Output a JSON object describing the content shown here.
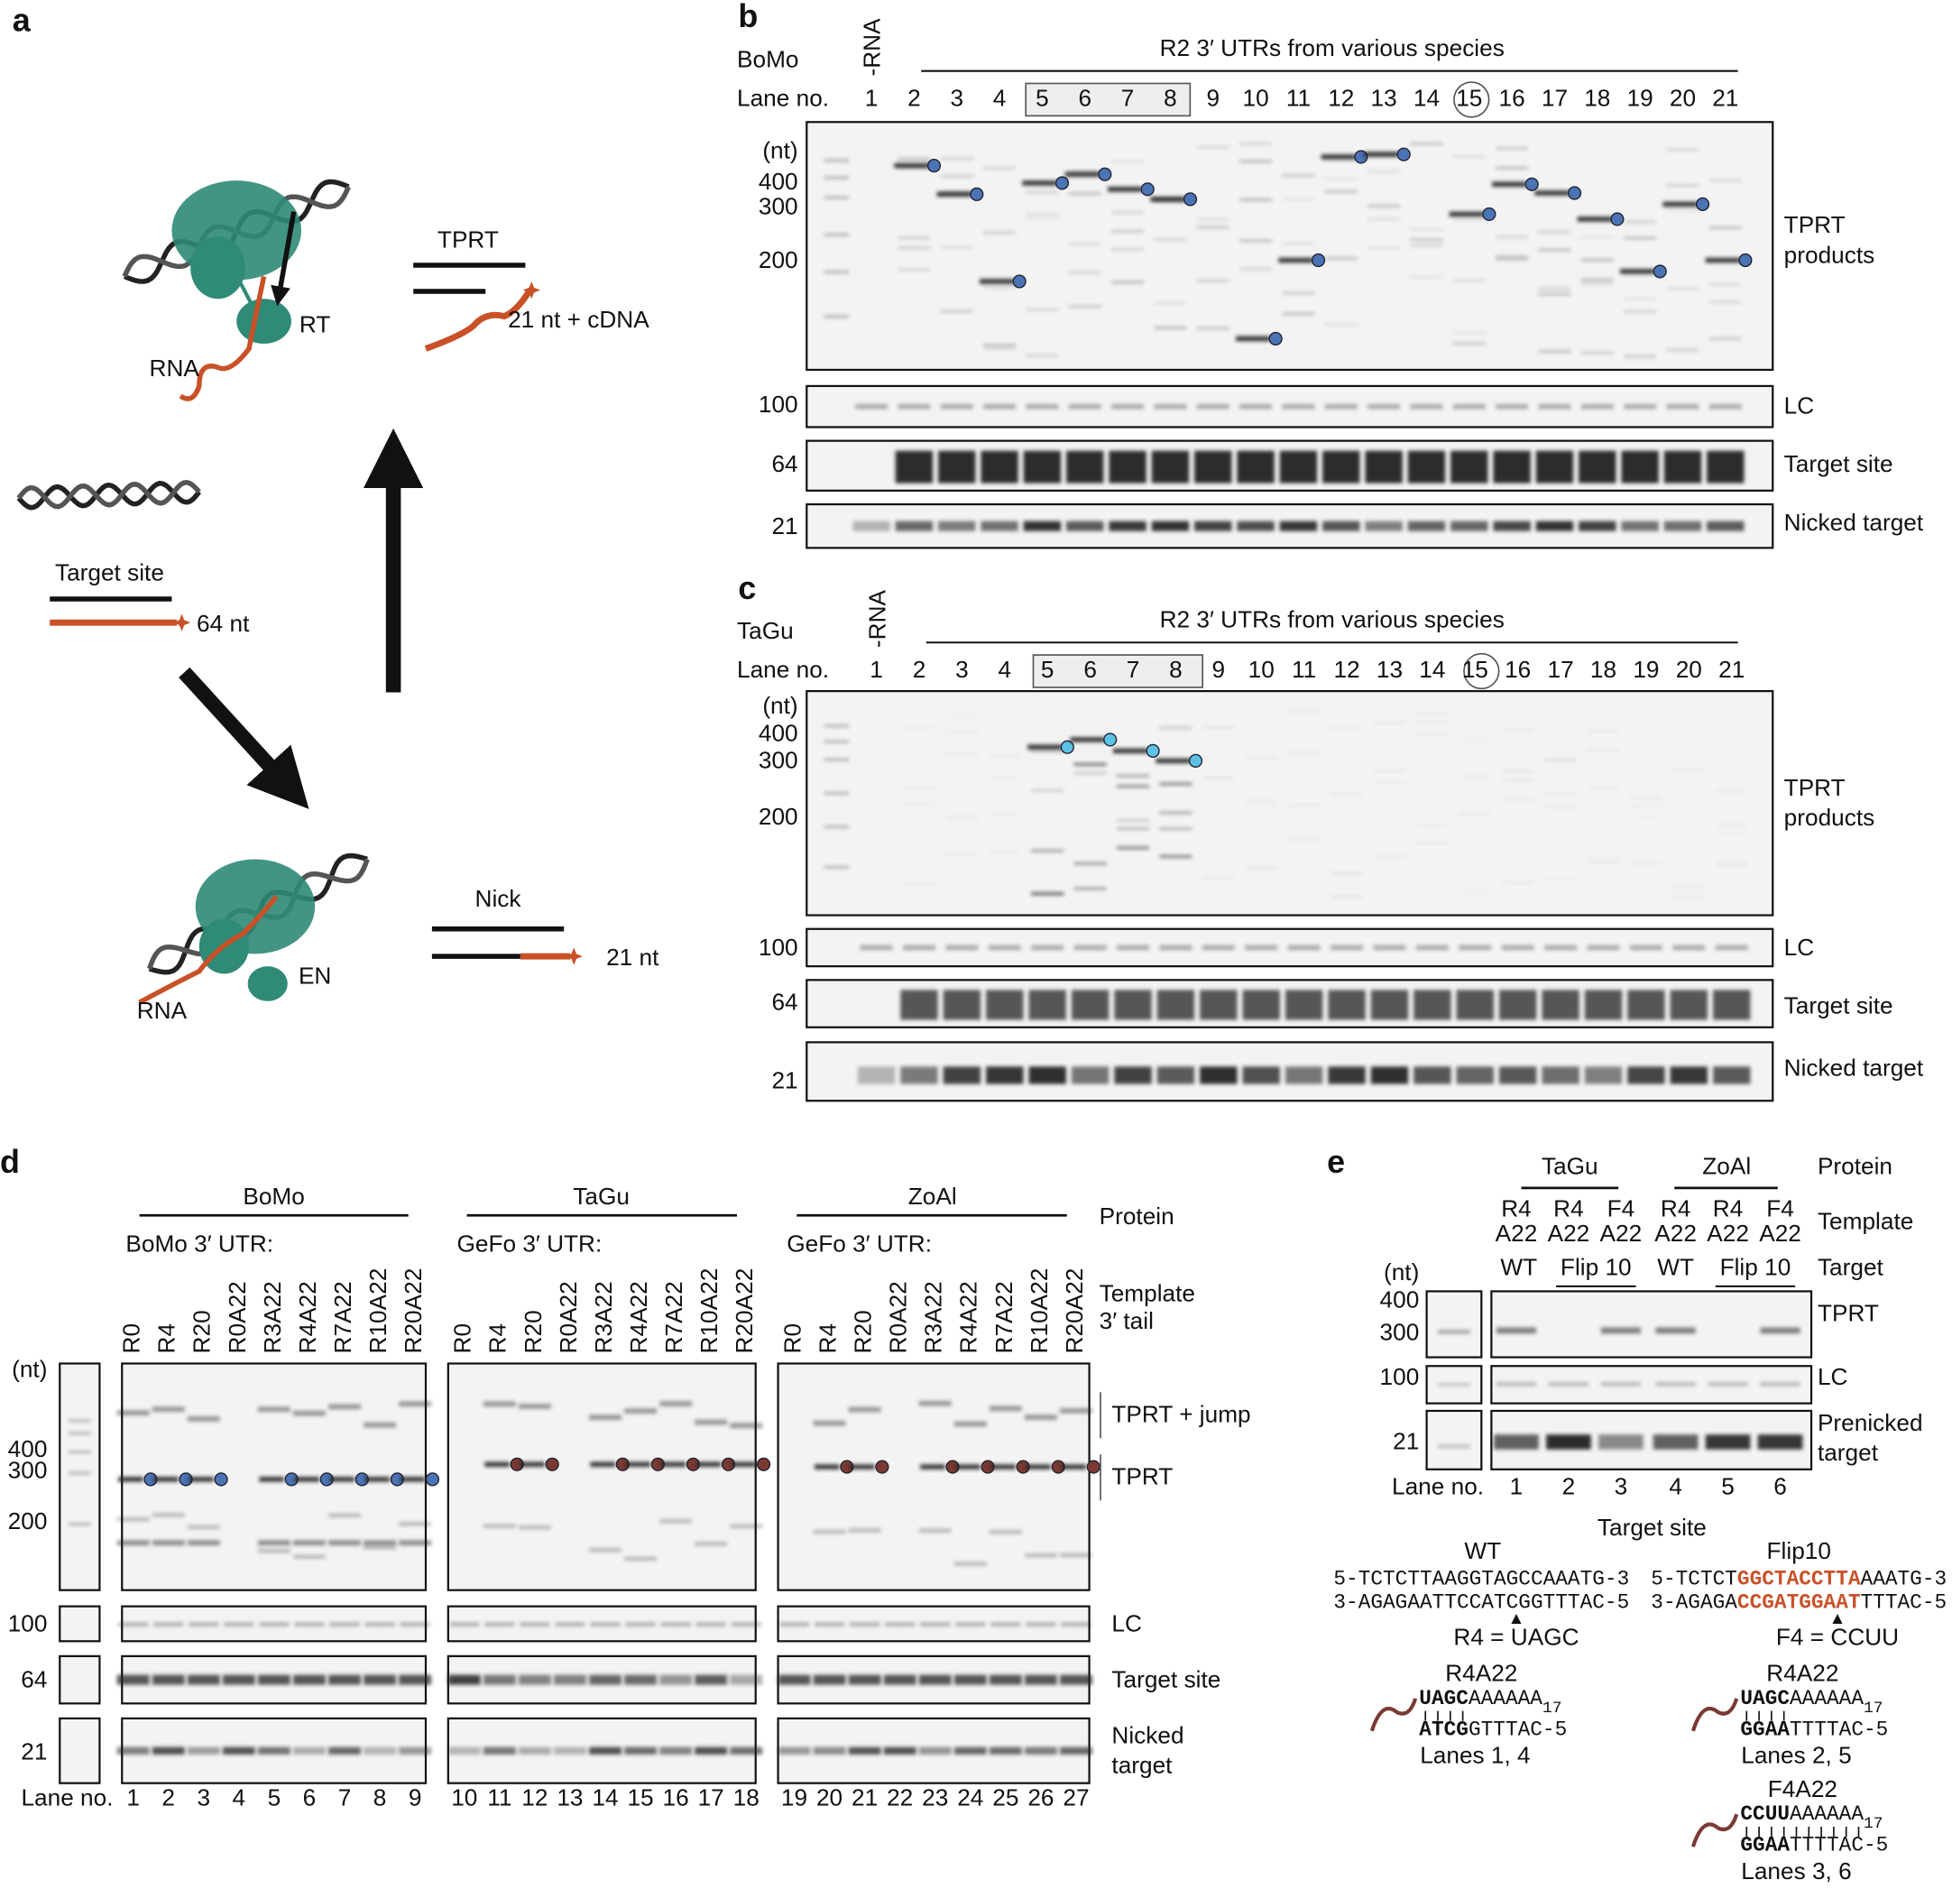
{
  "panel_a": {
    "label": "a",
    "tprt": "TPRT",
    "rt": "RT",
    "rna_top": "RNA",
    "cdna": "21 nt + cDNA",
    "target_site": "Target site",
    "nt64": "64 nt",
    "nick": "Nick",
    "nt21": "21 nt",
    "en": "EN",
    "rna_bottom": "RNA"
  },
  "panel_b": {
    "label": "b",
    "protein": "BoMo",
    "minus_rna": "-RNA",
    "header": "R2 3′ UTRs from various species",
    "lane_label": "Lane no.",
    "lanes": [
      "1",
      "2",
      "3",
      "4",
      "5",
      "6",
      "7",
      "8",
      "9",
      "10",
      "11",
      "12",
      "13",
      "14",
      "15",
      "16",
      "17",
      "18",
      "19",
      "20",
      "21"
    ],
    "nt_unit": "(nt)",
    "size_markers": [
      "400",
      "300",
      "200"
    ],
    "row_markers": [
      "100",
      "64",
      "21"
    ],
    "row_labels": [
      [
        "TPRT",
        "products"
      ],
      [
        "LC"
      ],
      [
        "Target site"
      ],
      [
        "Nicked target"
      ]
    ]
  },
  "panel_c": {
    "label": "c",
    "protein": "TaGu",
    "minus_rna": "-RNA",
    "header": "R2 3′ UTRs from various species",
    "lane_label": "Lane no.",
    "lanes": [
      "1",
      "2",
      "3",
      "4",
      "5",
      "6",
      "7",
      "8",
      "9",
      "10",
      "11",
      "12",
      "13",
      "14",
      "15",
      "16",
      "17",
      "18",
      "19",
      "20",
      "21"
    ],
    "nt_unit": "(nt)",
    "size_markers": [
      "400",
      "300",
      "200"
    ],
    "row_markers": [
      "100",
      "64",
      "21"
    ],
    "row_labels": [
      [
        "TPRT",
        "products"
      ],
      [
        "LC"
      ],
      [
        "Target site"
      ],
      [
        "Nicked target"
      ]
    ]
  },
  "panel_d": {
    "label": "d",
    "protein_label": "Protein",
    "template_label": [
      "Template",
      "3′ tail"
    ],
    "groups": [
      {
        "protein": "BoMo",
        "utr": "BoMo 3′ UTR:",
        "templates": [
          "R0",
          "R4",
          "R20",
          "R0A22",
          "R3A22",
          "R4A22",
          "R7A22",
          "R10A22",
          "R20A22"
        ],
        "lanes": [
          "1",
          "2",
          "3",
          "4",
          "5",
          "6",
          "7",
          "8",
          "9"
        ]
      },
      {
        "protein": "TaGu",
        "utr": "GeFo 3′ UTR:",
        "templates": [
          "R0",
          "R4",
          "R20",
          "R0A22",
          "R3A22",
          "R4A22",
          "R7A22",
          "R10A22",
          "R20A22"
        ],
        "lanes": [
          "10",
          "11",
          "12",
          "13",
          "14",
          "15",
          "16",
          "17",
          "18"
        ]
      },
      {
        "protein": "ZoAl",
        "utr": "GeFo 3′ UTR:",
        "templates": [
          "R0",
          "R4",
          "R20",
          "R0A22",
          "R3A22",
          "R4A22",
          "R7A22",
          "R10A22",
          "R20A22"
        ],
        "lanes": [
          "19",
          "20",
          "21",
          "22",
          "23",
          "24",
          "25",
          "26",
          "27"
        ]
      }
    ],
    "nt_unit": "(nt)",
    "size_markers": [
      "400",
      "300",
      "200"
    ],
    "row_markers": [
      "100",
      "64",
      "21"
    ],
    "row_labels": [
      [
        "TPRT + jump"
      ],
      [
        "TPRT"
      ],
      [
        "LC"
      ],
      [
        "Target site"
      ],
      [
        "Nicked",
        "target"
      ]
    ],
    "lane_label": "Lane no."
  },
  "panel_e": {
    "label": "e",
    "proteins": [
      "TaGu",
      "ZoAl"
    ],
    "protein_label": "Protein",
    "templates": [
      [
        "R4",
        "A22"
      ],
      [
        "R4",
        "A22"
      ],
      [
        "F4",
        "A22"
      ],
      [
        "R4",
        "A22"
      ],
      [
        "R4",
        "A22"
      ],
      [
        "F4",
        "A22"
      ]
    ],
    "template_label": "Template",
    "targets": [
      "WT",
      "Flip 10",
      "WT",
      "Flip 10"
    ],
    "target_label": "Target",
    "nt_unit": "(nt)",
    "size_markers": [
      "400",
      "300"
    ],
    "row_markers": [
      "100",
      "21"
    ],
    "row_labels": [
      [
        "TPRT"
      ],
      [
        "LC"
      ],
      [
        "Prenicked",
        "target"
      ]
    ],
    "lane_label": "Lane no.",
    "lanes": [
      "1",
      "2",
      "3",
      "4",
      "5",
      "6"
    ],
    "target_site_title": "Target site",
    "wt": {
      "name": "WT",
      "top": [
        "5-TCTCTTAAGGTAGCCAAATG-3"
      ],
      "bottom": [
        "3-AGAGAATTCCATCGGTTTAC-5"
      ],
      "cut": "R4 = UAGC"
    },
    "flip": {
      "name": "Flip10",
      "top": [
        "5-TCTCT",
        "GGCTACCTTA",
        "AAATG-3"
      ],
      "bottom": [
        "3-AGAGA",
        "CCGATGGAAT",
        "TTTAC-5"
      ],
      "cut": "F4 = CCUU"
    },
    "constructs": [
      {
        "name": "R4A22",
        "top": [
          "UAGC",
          "AAAAAA",
          "17"
        ],
        "bottom": [
          "ATCG",
          "GTTTAC-5"
        ],
        "lanes": "Lanes 1, 4"
      },
      {
        "name": "R4A22",
        "top": [
          "UAGC",
          "AAAAAA",
          "17"
        ],
        "bottom": [
          "GGAA",
          "TTTTAC-5"
        ],
        "lanes": "Lanes 2, 5"
      },
      {
        "name": "F4A22",
        "top": [
          "CCUU",
          "AAAAAA",
          "17"
        ],
        "bottom": [
          "GGAA",
          "TTTTAC-5"
        ],
        "lanes": "Lanes 3, 6"
      }
    ]
  }
}
